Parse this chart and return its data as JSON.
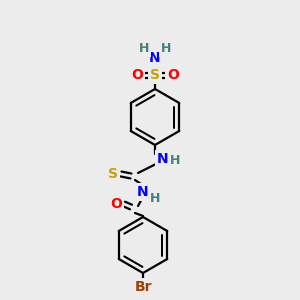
{
  "bg_color": "#ececec",
  "atom_colors": {
    "H": "#408080",
    "N": "#0000ff",
    "O": "#ff0000",
    "S_sulfone": "#c8a000",
    "S_thio": "#c8a000",
    "Br": "#a04000"
  },
  "bond_color": "#000000",
  "bond_lw": 1.6,
  "ring_r": 28,
  "fig_size": [
    3.0,
    3.0
  ],
  "dpi": 100
}
